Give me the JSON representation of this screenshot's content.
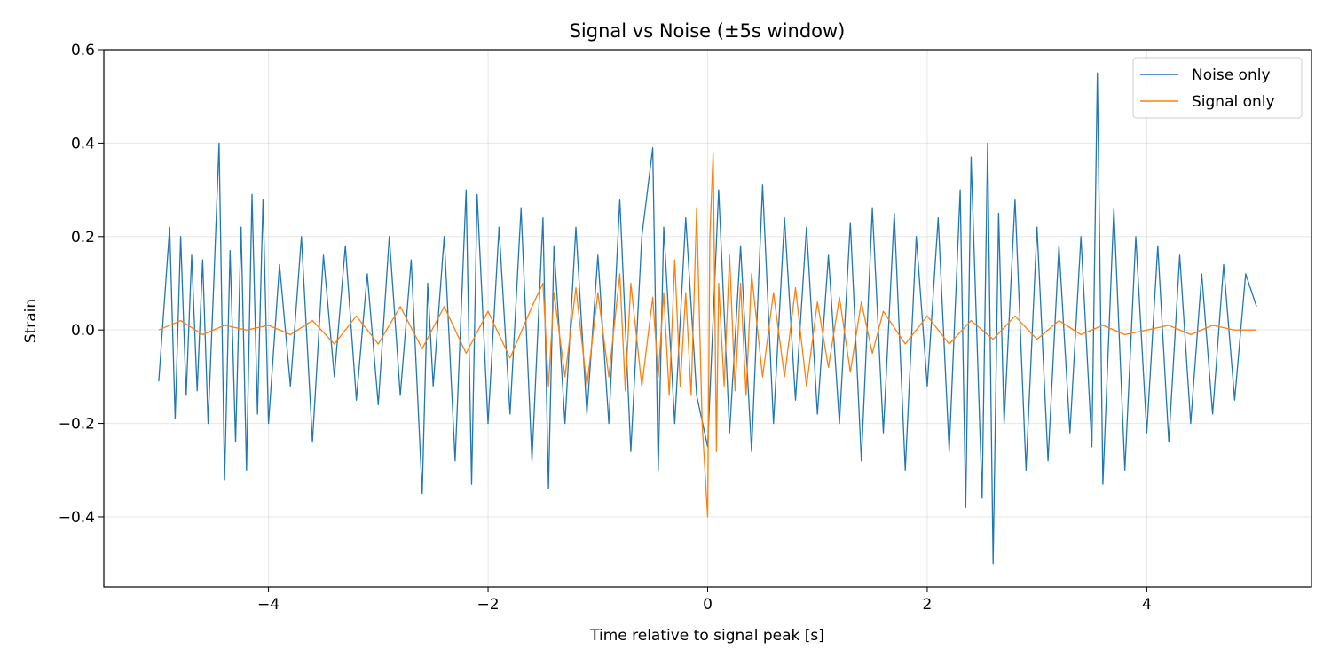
{
  "chart_data": {
    "type": "line",
    "title": "Signal vs Noise (±5s window)",
    "xlabel": "Time relative to signal peak [s]",
    "ylabel": "Strain",
    "xlim": [
      -5.5,
      5.5
    ],
    "ylim": [
      -0.55,
      0.6
    ],
    "grid": true,
    "legend_position": "top-right",
    "x_ticks": [
      -4,
      -2,
      0,
      2,
      4
    ],
    "x_tick_labels": [
      "−4",
      "−2",
      "0",
      "2",
      "4"
    ],
    "y_ticks": [
      -0.4,
      -0.2,
      0.0,
      0.2,
      0.4,
      0.6
    ],
    "y_tick_labels": [
      "−0.4",
      "−0.2",
      "0.0",
      "0.2",
      "0.4",
      "0.6"
    ],
    "series": [
      {
        "name": "Noise only",
        "color": "#1f77b4",
        "x": [
          -5.0,
          -4.9,
          -4.85,
          -4.8,
          -4.75,
          -4.7,
          -4.65,
          -4.6,
          -4.55,
          -4.5,
          -4.45,
          -4.4,
          -4.35,
          -4.3,
          -4.25,
          -4.2,
          -4.15,
          -4.1,
          -4.05,
          -4.0,
          -3.9,
          -3.8,
          -3.7,
          -3.6,
          -3.5,
          -3.4,
          -3.3,
          -3.2,
          -3.1,
          -3.0,
          -2.9,
          -2.8,
          -2.7,
          -2.6,
          -2.55,
          -2.5,
          -2.4,
          -2.3,
          -2.2,
          -2.15,
          -2.1,
          -2.0,
          -1.9,
          -1.8,
          -1.7,
          -1.6,
          -1.5,
          -1.45,
          -1.4,
          -1.3,
          -1.2,
          -1.1,
          -1.0,
          -0.9,
          -0.8,
          -0.7,
          -0.6,
          -0.5,
          -0.45,
          -0.4,
          -0.3,
          -0.2,
          -0.1,
          0.0,
          0.1,
          0.2,
          0.3,
          0.4,
          0.5,
          0.6,
          0.7,
          0.8,
          0.9,
          1.0,
          1.1,
          1.2,
          1.3,
          1.4,
          1.5,
          1.6,
          1.7,
          1.8,
          1.9,
          2.0,
          2.1,
          2.2,
          2.3,
          2.35,
          2.4,
          2.5,
          2.55,
          2.6,
          2.65,
          2.7,
          2.8,
          2.9,
          3.0,
          3.1,
          3.2,
          3.3,
          3.4,
          3.5,
          3.55,
          3.6,
          3.7,
          3.8,
          3.9,
          4.0,
          4.1,
          4.2,
          4.3,
          4.4,
          4.5,
          4.6,
          4.7,
          4.8,
          4.9,
          5.0
        ],
        "values": [
          -0.11,
          0.22,
          -0.19,
          0.2,
          -0.14,
          0.16,
          -0.13,
          0.15,
          -0.2,
          0.09,
          0.4,
          -0.32,
          0.17,
          -0.24,
          0.22,
          -0.3,
          0.29,
          -0.18,
          0.28,
          -0.2,
          0.14,
          -0.12,
          0.2,
          -0.24,
          0.16,
          -0.1,
          0.18,
          -0.15,
          0.12,
          -0.16,
          0.2,
          -0.14,
          0.15,
          -0.35,
          0.1,
          -0.12,
          0.2,
          -0.28,
          0.3,
          -0.33,
          0.29,
          -0.2,
          0.22,
          -0.18,
          0.26,
          -0.28,
          0.24,
          -0.34,
          0.18,
          -0.2,
          0.22,
          -0.18,
          0.16,
          -0.2,
          0.28,
          -0.26,
          0.2,
          0.39,
          -0.3,
          0.22,
          -0.2,
          0.24,
          -0.14,
          -0.25,
          0.3,
          -0.22,
          0.18,
          -0.26,
          0.31,
          -0.2,
          0.24,
          -0.15,
          0.22,
          -0.18,
          0.16,
          -0.2,
          0.23,
          -0.28,
          0.26,
          -0.22,
          0.25,
          -0.3,
          0.2,
          -0.12,
          0.24,
          -0.26,
          0.3,
          -0.38,
          0.37,
          -0.36,
          0.4,
          -0.5,
          0.25,
          -0.2,
          0.28,
          -0.3,
          0.22,
          -0.28,
          0.18,
          -0.22,
          0.2,
          -0.25,
          0.55,
          -0.33,
          0.26,
          -0.3,
          0.2,
          -0.22,
          0.18,
          -0.24,
          0.16,
          -0.2,
          0.12,
          -0.18,
          0.14,
          -0.15,
          0.12,
          0.05
        ]
      },
      {
        "name": "Signal only",
        "color": "#ff7f0e",
        "x": [
          -5.0,
          -4.8,
          -4.6,
          -4.4,
          -4.2,
          -4.0,
          -3.8,
          -3.6,
          -3.4,
          -3.2,
          -3.0,
          -2.8,
          -2.6,
          -2.4,
          -2.2,
          -2.0,
          -1.8,
          -1.6,
          -1.5,
          -1.45,
          -1.4,
          -1.3,
          -1.2,
          -1.1,
          -1.0,
          -0.9,
          -0.8,
          -0.75,
          -0.7,
          -0.6,
          -0.5,
          -0.45,
          -0.4,
          -0.35,
          -0.3,
          -0.25,
          -0.2,
          -0.15,
          -0.1,
          -0.05,
          0.0,
          0.02,
          0.05,
          0.08,
          0.1,
          0.15,
          0.2,
          0.25,
          0.3,
          0.35,
          0.4,
          0.5,
          0.6,
          0.7,
          0.8,
          0.9,
          1.0,
          1.1,
          1.2,
          1.3,
          1.4,
          1.5,
          1.6,
          1.8,
          2.0,
          2.2,
          2.4,
          2.6,
          2.8,
          3.0,
          3.2,
          3.4,
          3.6,
          3.8,
          4.0,
          4.2,
          4.4,
          4.6,
          4.8,
          5.0
        ],
        "values": [
          0.0,
          0.02,
          -0.01,
          0.01,
          0.0,
          0.01,
          -0.01,
          0.02,
          -0.03,
          0.03,
          -0.03,
          0.05,
          -0.04,
          0.05,
          -0.05,
          0.04,
          -0.06,
          0.05,
          0.1,
          -0.12,
          0.08,
          -0.1,
          0.09,
          -0.12,
          0.08,
          -0.1,
          0.12,
          -0.13,
          0.1,
          -0.12,
          0.07,
          -0.1,
          0.08,
          -0.14,
          0.15,
          -0.12,
          0.08,
          -0.14,
          0.26,
          -0.2,
          -0.4,
          0.2,
          0.38,
          -0.26,
          0.1,
          -0.12,
          0.16,
          -0.13,
          0.1,
          -0.14,
          0.12,
          -0.1,
          0.08,
          -0.1,
          0.09,
          -0.12,
          0.06,
          -0.08,
          0.07,
          -0.09,
          0.06,
          -0.05,
          0.04,
          -0.03,
          0.03,
          -0.03,
          0.02,
          -0.02,
          0.03,
          -0.02,
          0.02,
          -0.01,
          0.01,
          -0.01,
          0.0,
          0.01,
          -0.01,
          0.01,
          0.0,
          0.0
        ]
      }
    ]
  }
}
